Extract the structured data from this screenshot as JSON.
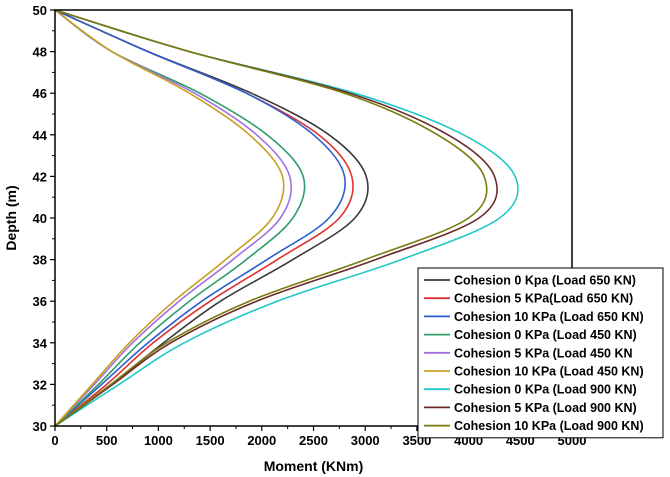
{
  "chart_data": {
    "type": "line",
    "title": "",
    "xlabel": "Moment (KNm)",
    "ylabel": "Depth (m)",
    "xlim": [
      0,
      5000
    ],
    "ylim": [
      30,
      50
    ],
    "x_ticks": [
      0,
      500,
      1000,
      1500,
      2000,
      2500,
      3000,
      3500,
      4000,
      4500,
      5000
    ],
    "y_ticks": [
      30,
      32,
      34,
      36,
      38,
      40,
      42,
      44,
      46,
      48,
      50
    ],
    "grid": false,
    "legend_position": "bottom-right",
    "series": [
      {
        "name": "Cohesion 0 Kpa (Load 650 KN)",
        "color": "#3a3a3a",
        "points": [
          [
            0,
            50
          ],
          [
            900,
            48
          ],
          [
            1900,
            46
          ],
          [
            2650,
            44
          ],
          [
            3010,
            42
          ],
          [
            2900,
            40
          ],
          [
            2300,
            38
          ],
          [
            1600,
            36
          ],
          [
            1050,
            34
          ],
          [
            550,
            32
          ],
          [
            0,
            30
          ]
        ]
      },
      {
        "name": "Cohesion 5 KPa(Load 650 KN)",
        "color": "#e03030",
        "points": [
          [
            0,
            50
          ],
          [
            900,
            48
          ],
          [
            1850,
            46
          ],
          [
            2550,
            44
          ],
          [
            2870,
            42
          ],
          [
            2750,
            40
          ],
          [
            2150,
            38
          ],
          [
            1500,
            36
          ],
          [
            950,
            34
          ],
          [
            500,
            32
          ],
          [
            0,
            30
          ]
        ]
      },
      {
        "name": "Cohesion 10 KPa (Load 650 KN)",
        "color": "#2a5fd0",
        "points": [
          [
            0,
            50
          ],
          [
            900,
            48
          ],
          [
            1850,
            46
          ],
          [
            2500,
            44
          ],
          [
            2800,
            42
          ],
          [
            2650,
            40
          ],
          [
            2050,
            38
          ],
          [
            1420,
            36
          ],
          [
            900,
            34
          ],
          [
            450,
            32
          ],
          [
            0,
            30
          ]
        ]
      },
      {
        "name": "Cohesion 0 KPa (Load 450 KN)",
        "color": "#2f9d6a",
        "points": [
          [
            0,
            50
          ],
          [
            550,
            48
          ],
          [
            1400,
            46
          ],
          [
            2050,
            44
          ],
          [
            2400,
            42
          ],
          [
            2300,
            40
          ],
          [
            1850,
            38
          ],
          [
            1300,
            36
          ],
          [
            820,
            34
          ],
          [
            420,
            32
          ],
          [
            0,
            30
          ]
        ]
      },
      {
        "name": "Cohesion 5 KPa (Load 450 KN",
        "color": "#a070e0",
        "points": [
          [
            0,
            50
          ],
          [
            550,
            48
          ],
          [
            1350,
            46
          ],
          [
            1950,
            44
          ],
          [
            2270,
            42
          ],
          [
            2180,
            40
          ],
          [
            1720,
            38
          ],
          [
            1200,
            36
          ],
          [
            750,
            34
          ],
          [
            380,
            32
          ],
          [
            0,
            30
          ]
        ]
      },
      {
        "name": "Cohesion 10 KPa (Load 450 KN)",
        "color": "#c8a020",
        "points": [
          [
            0,
            50
          ],
          [
            550,
            48
          ],
          [
            1300,
            46
          ],
          [
            1880,
            44
          ],
          [
            2200,
            42
          ],
          [
            2100,
            40
          ],
          [
            1650,
            38
          ],
          [
            1150,
            36
          ],
          [
            720,
            34
          ],
          [
            360,
            32
          ],
          [
            0,
            30
          ]
        ]
      },
      {
        "name": "Cohesion 0 KPa (Load 900 KN)",
        "color": "#20c8c8",
        "points": [
          [
            0,
            50
          ],
          [
            1300,
            48
          ],
          [
            2900,
            46
          ],
          [
            3950,
            44
          ],
          [
            4450,
            42
          ],
          [
            4300,
            40
          ],
          [
            3350,
            38
          ],
          [
            2150,
            36
          ],
          [
            1250,
            34
          ],
          [
            620,
            32
          ],
          [
            0,
            30
          ]
        ]
      },
      {
        "name": "Cohesion 5 KPa (Load 900 KN)",
        "color": "#6a2a2a",
        "points": [
          [
            0,
            50
          ],
          [
            1300,
            48
          ],
          [
            2850,
            46
          ],
          [
            3800,
            44
          ],
          [
            4250,
            42
          ],
          [
            4100,
            40
          ],
          [
            3100,
            38
          ],
          [
            1950,
            36
          ],
          [
            1120,
            34
          ],
          [
            560,
            32
          ],
          [
            0,
            30
          ]
        ]
      },
      {
        "name": "Cohesion 10 KPa (Load 900 KN)",
        "color": "#7a7a10",
        "points": [
          [
            0,
            50
          ],
          [
            1300,
            48
          ],
          [
            2800,
            46
          ],
          [
            3700,
            44
          ],
          [
            4150,
            42
          ],
          [
            4000,
            40
          ],
          [
            3000,
            38
          ],
          [
            1880,
            36
          ],
          [
            1080,
            34
          ],
          [
            540,
            32
          ],
          [
            0,
            30
          ]
        ]
      }
    ]
  }
}
